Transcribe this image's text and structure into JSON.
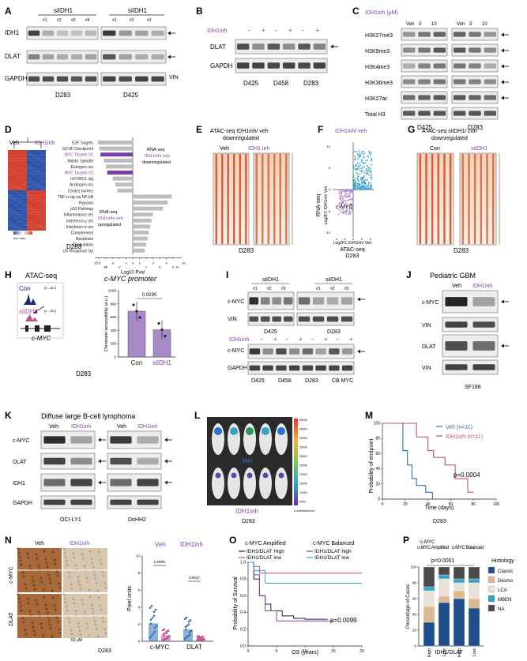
{
  "colors": {
    "purple": "#7b3fa0",
    "magenta": "#c0508a",
    "navy": "#1f2a6b",
    "blue": "#2f6fb5",
    "teal": "#3aa0c8",
    "grey": "#9b9b9b",
    "heatRed": "#d9412c",
    "heatBlue": "#2a4fb0"
  },
  "panelA": {
    "letter": "A",
    "group1": "siIDH1",
    "group2": "siIDH1",
    "lanes1": [
      "#1",
      "#2",
      "#3",
      "#4"
    ],
    "lanes2": [
      "#1",
      "#2",
      "#3"
    ],
    "rows": [
      "IDH1",
      "DLAT",
      "GAPDH"
    ],
    "vin": "VIN",
    "cell1": "D283",
    "cell2": "D425"
  },
  "panelB": {
    "letter": "B",
    "treat": "IDH1inh",
    "signs": [
      "-",
      "+",
      "-",
      "+",
      "-",
      "+"
    ],
    "rows": [
      "DLAT",
      "GAPDH"
    ],
    "cells": [
      "D425",
      "D458",
      "D283"
    ]
  },
  "panelC": {
    "letter": "C",
    "dose_label": "IDH1inh (μM)",
    "doses": [
      "Veh",
      "3",
      "10",
      "Veh",
      "3",
      "10"
    ],
    "rows": [
      "H3K27me3",
      "H3K9me3",
      "H3K4me3",
      "H3K36me3",
      "H3K27ac",
      "Total H3"
    ],
    "cells": [
      "D425",
      "D283"
    ]
  },
  "panelD": {
    "letter": "D",
    "veh": "Veh",
    "inh": "IDH1inh",
    "minmax": "min max",
    "cell": "D283",
    "xlabel": "Log10 Pval",
    "pathways": [
      "E2F Targets",
      "G2-M Checkpoint",
      "MYC Targets V1",
      "Mitotic Spindle",
      "Estrogen res",
      "MYC Targets V2",
      "mTORC1 sig",
      "Androgen res",
      "Choles homeo",
      "TNF-α sig via NF-kB",
      "Hypoxia",
      "p53 Pathway",
      "Inflammatory res",
      "Interferon-γ res",
      "Interferon-α res",
      "Complement",
      "Apoptosis",
      "Coagulation",
      "UV Response Up"
    ],
    "values": [
      -5.2,
      -5.0,
      -4.8,
      -4.3,
      -4.0,
      -3.8,
      -3.0,
      -2.6,
      -2.3,
      5.8,
      5.2,
      4.5,
      3.0,
      2.8,
      2.6,
      2.4,
      2.2,
      2.0,
      1.8
    ],
    "down_l1": "RNA-seq",
    "down_l2": "IDH1inh/ veh",
    "down_l3": "downregulated",
    "up_l1": "RNA-seq",
    "up_l2": "IDH1inh/ veh",
    "up_l3": "upregulated",
    "ticks": [
      "-15",
      "-5",
      "-3",
      "-1",
      "0",
      "1",
      "3",
      "5",
      "15",
      "-10",
      "-4",
      "-2",
      "2",
      "4",
      "6",
      "10"
    ]
  },
  "panelE": {
    "letter": "E",
    "title1": "ATAC-seq IDH1inh/ veh",
    "title2": "downregulated",
    "veh": "Veh",
    "inh": "IDH1 inh",
    "cell": "D283"
  },
  "panelF": {
    "letter": "F",
    "title": "IDH1inh/ veh",
    "ylabel1": "RNA-seq",
    "ylabel2": "Log2FC IDH1inh/ Veh",
    "xlabel1": "Log2FC IDH1inh/ Veh",
    "xlabel2": "ATAC-seq",
    "cell": "D283",
    "label": "c-MYC",
    "xticks": [
      "-4",
      "-2",
      "0",
      "2",
      "4"
    ],
    "yticks": [
      "10",
      "5",
      "0",
      "-5",
      "-10"
    ]
  },
  "panelG": {
    "letter": "G",
    "title1": "ATAC-seq siIDH1/ con",
    "title2": "downregulated",
    "con": "Con",
    "si": "siIDH1",
    "cell": "D283"
  },
  "panelH": {
    "letter": "H",
    "title": "ATAC-seq",
    "con": "Con",
    "si": "siIDH1",
    "range1": "[0 - 262]",
    "range2": "[0 - 262]",
    "gene": "c-MYC",
    "cell": "D283",
    "chart_title": "c-MYC promoter",
    "ylabel": "Chromatin accessibility (a.u.)",
    "pval": "0.0290",
    "categories": [
      "Con",
      "siIDH1"
    ],
    "yticks": [
      "0",
      "200",
      "400",
      "600",
      "800",
      "1000"
    ]
  },
  "panelI": {
    "letter": "I",
    "group1": "siIDH1",
    "group2": "siIDH1",
    "lanes": [
      "#1",
      "#2",
      "#3",
      "#1",
      "#2",
      "#3"
    ],
    "rows_top": [
      "c-MYC",
      "VIN"
    ],
    "cells_top": [
      "D425",
      "D283"
    ],
    "treat": "IDH1inh",
    "signs": [
      "-",
      "+",
      "-",
      "+",
      "-",
      "+",
      "-",
      "+"
    ],
    "rows_bot": [
      "c-MYC",
      "GAPDH"
    ],
    "cells_bot": [
      "D425",
      "D458",
      "D283",
      "CB MYC"
    ]
  },
  "panelJ": {
    "letter": "J",
    "title": "Pediatric GBM",
    "veh": "Veh",
    "inh": "IDH1inh",
    "rows": [
      "c-MYC",
      "VIN",
      "DLAT",
      "VIN"
    ],
    "cell": "SF188"
  },
  "panelK": {
    "letter": "K",
    "title": "Diffuse large B-cell lymphoma",
    "veh1": "Veh",
    "inh1": "IDH1inh",
    "veh2": "Veh",
    "inh2": "IDH1inh",
    "rows": [
      "c-MYC",
      "DLAT",
      "IDH1",
      "GAPDH"
    ],
    "cells": [
      "OCI-LY1",
      "DoHH2"
    ]
  },
  "panelL": {
    "letter": "L",
    "veh": "Veh",
    "inh": "IDH1inh",
    "cell": "D283",
    "lum": "Luminescence",
    "scale": [
      "50000",
      "45000",
      "40000",
      "35000",
      "30000",
      "25000",
      "20000",
      "15000",
      "10000",
      "5000"
    ]
  },
  "panelM": {
    "letter": "M",
    "ylabel": "Probability of endpoint",
    "xlabel": "Time (days)",
    "cell": "D283",
    "pval": "p=0.0004",
    "xticks": [
      "0",
      "20",
      "40",
      "60",
      "80",
      "100"
    ],
    "yticks": [
      "0",
      "20",
      "40",
      "60",
      "80",
      "100"
    ],
    "series": [
      {
        "name": "Veh (n=11)",
        "color": "#2f6fb5"
      },
      {
        "name": "IDH1inh (n=11)",
        "color": "#c0508a"
      }
    ]
  },
  "panelN": {
    "letter": "N",
    "veh": "Veh",
    "inh": "IDH1inh",
    "row1": "c-MYC",
    "row2": "DLAT",
    "scale": "50 μM",
    "cell": "D283",
    "ylabel": "Pixel units",
    "p1": "0.0006",
    "p2": "0.0047",
    "categories": [
      "c-MYC",
      "DLAT"
    ],
    "veh2": "Veh",
    "inh2": "IDH1inh",
    "yticks": [
      "0",
      "2",
      "4",
      "6",
      "8",
      "10"
    ]
  },
  "panelO": {
    "letter": "O",
    "amp": "c-MYC Amplified",
    "bal": "c-MYC Balanced",
    "l1": "IDH1/DLAT High",
    "l2": "IDH1/DLAT low",
    "l3": "IDH1/DLAT high",
    "l4": "IDH1/DLAT low",
    "ylabel": "Probability of Survival",
    "xlabel": "OS (years)",
    "pval": "p=0.0099",
    "xticks": [
      "0",
      "5",
      "10",
      "15",
      "20"
    ],
    "yticks": [
      "0.0",
      "0.2",
      "0.4",
      "0.6",
      "0.8",
      "1.0"
    ]
  },
  "panelP": {
    "letter": "P",
    "amp": "c-MYC Amplified",
    "bal": "c-MYC Balanced",
    "pval": "p<0.0001",
    "ylabel": "Percentage of Cases",
    "xlabel": "IDH1/DLAT",
    "cats": [
      "High",
      "Low",
      "High",
      "Low"
    ],
    "yticks": [
      "0",
      "20",
      "40",
      "60",
      "80",
      "100"
    ],
    "legend_title": "Histology",
    "legend": [
      {
        "name": "Classic",
        "color": "#1f4e8a"
      },
      {
        "name": "Desmo",
        "color": "#d9b98f"
      },
      {
        "name": "LCA",
        "color": "#e9e2d9"
      },
      {
        "name": "MBEN",
        "color": "#3aa0c8"
      },
      {
        "name": "NA",
        "color": "#4a4a4a"
      }
    ]
  },
  "chart_data": [
    {
      "type": "bar",
      "title": "",
      "categories": [
        "E2F Targets",
        "G2-M Checkpoint",
        "MYC Targets V1",
        "Mitotic Spindle",
        "Estrogen res",
        "MYC Targets V2",
        "mTORC1 sig",
        "Androgen res",
        "Choles homeo",
        "TNF-α sig via NF-kB",
        "Hypoxia",
        "p53 Pathway",
        "Inflammatory res",
        "Interferon-γ res",
        "Interferon-α res",
        "Complement",
        "Apoptosis",
        "Coagulation",
        "UV Response Up"
      ],
      "values": [
        -5.2,
        -5.0,
        -4.8,
        -4.3,
        -4.0,
        -3.8,
        -3.0,
        -2.6,
        -2.3,
        5.8,
        5.2,
        4.5,
        3.0,
        2.8,
        2.6,
        2.4,
        2.2,
        2.0,
        1.8
      ],
      "xlabel": "Log10 Pval"
    },
    {
      "type": "bar",
      "title": "c-MYC promoter",
      "categories": [
        "Con",
        "siIDH1"
      ],
      "values": [
        690,
        410
      ],
      "ylim": [
        0,
        1000
      ],
      "ylabel": "Chromatin accessibility (a.u.)"
    },
    {
      "type": "line",
      "title": "",
      "xlabel": "Time (days)",
      "ylabel": "Probability of endpoint",
      "xlim": [
        0,
        100
      ],
      "ylim": [
        0,
        100
      ],
      "series": [
        {
          "name": "Veh (n=11)",
          "x": [
            0,
            18,
            18,
            22,
            22,
            26,
            26,
            30,
            30,
            38,
            38,
            44,
            44
          ],
          "y": [
            100,
            100,
            64,
            64,
            45,
            45,
            27,
            27,
            18,
            18,
            9,
            9,
            0
          ]
        },
        {
          "name": "IDH1inh (n=11)",
          "x": [
            0,
            30,
            30,
            40,
            40,
            45,
            45,
            55,
            55,
            64,
            64,
            75,
            75,
            80
          ],
          "y": [
            100,
            100,
            82,
            82,
            64,
            64,
            55,
            55,
            45,
            45,
            27,
            27,
            9,
            9
          ]
        }
      ]
    },
    {
      "type": "bar",
      "title": "",
      "categories": [
        "c-MYC",
        "DLAT"
      ],
      "series": [
        {
          "name": "Veh",
          "values": [
            2.1,
            1.4
          ]
        },
        {
          "name": "IDH1inh",
          "values": [
            0.7,
            0.3
          ]
        }
      ],
      "ylim": [
        0,
        10
      ],
      "ylabel": "Pixel units"
    },
    {
      "type": "line",
      "title": "",
      "xlabel": "OS (years)",
      "ylabel": "Probability of Survival",
      "xlim": [
        0,
        20
      ],
      "ylim": [
        0,
        1
      ],
      "series": [
        {
          "name": "IDH1/DLAT High",
          "x": [
            0,
            1,
            2,
            3,
            4,
            6,
            8,
            10,
            14
          ],
          "y": [
            1,
            0.8,
            0.6,
            0.5,
            0.42,
            0.36,
            0.33,
            0.32,
            0.32
          ]
        },
        {
          "name": "IDH1/DLAT low",
          "x": [
            0,
            1,
            2,
            20
          ],
          "y": [
            1,
            0.95,
            0.87,
            0.87
          ]
        },
        {
          "name": "IDH1/DLAT high",
          "x": [
            0,
            1,
            2,
            3,
            5,
            15
          ],
          "y": [
            1,
            0.85,
            0.6,
            0.42,
            0.3,
            0.3
          ]
        },
        {
          "name": "IDH1/DLAT low",
          "x": [
            0,
            1,
            3,
            20
          ],
          "y": [
            1,
            0.9,
            0.75,
            0.75
          ]
        }
      ]
    },
    {
      "type": "bar",
      "title": "",
      "categories": [
        "High",
        "Low",
        "High",
        "Low"
      ],
      "xlabel": "IDH1/DLAT",
      "ylabel": "Percentage of Cases",
      "ylim": [
        0,
        100
      ],
      "series": [
        {
          "name": "Classic",
          "values": [
            30,
            55,
            60,
            48
          ]
        },
        {
          "name": "Desmo",
          "values": [
            20,
            8,
            10,
            12
          ]
        },
        {
          "name": "LCA",
          "values": [
            20,
            22,
            10,
            20
          ]
        },
        {
          "name": "MBEN",
          "values": [
            5,
            5,
            5,
            5
          ]
        },
        {
          "name": "NA",
          "values": [
            25,
            10,
            15,
            15
          ]
        }
      ]
    }
  ]
}
